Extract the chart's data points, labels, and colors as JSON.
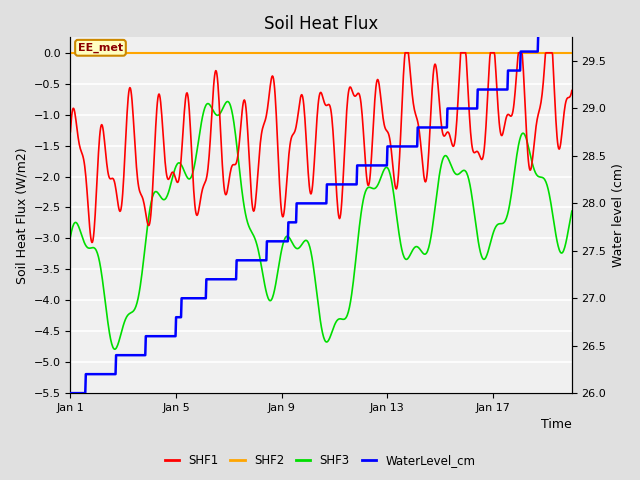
{
  "title": "Soil Heat Flux",
  "xlabel": "Time",
  "ylabel_left": "Soil Heat Flux (W/m2)",
  "ylabel_right": "Water level (cm)",
  "annotation": "EE_met",
  "ylim_left": [
    -5.5,
    0.25
  ],
  "ylim_right": [
    26.0,
    29.75
  ],
  "yticks_left": [
    0.0,
    -0.5,
    -1.0,
    -1.5,
    -2.0,
    -2.5,
    -3.0,
    -3.5,
    -4.0,
    -4.5,
    -5.0,
    -5.5
  ],
  "yticks_right": [
    26.0,
    26.5,
    27.0,
    27.5,
    28.0,
    28.5,
    29.0,
    29.5
  ],
  "shf2_color": "#FFA500",
  "shf1_color": "#FF0000",
  "shf3_color": "#00DD00",
  "water_color": "#0000FF",
  "fig_facecolor": "#e0e0e0",
  "ax_facecolor": "#f0f0f0",
  "grid_color": "#ffffff",
  "n_days": 19,
  "xlim": [
    0,
    19
  ]
}
